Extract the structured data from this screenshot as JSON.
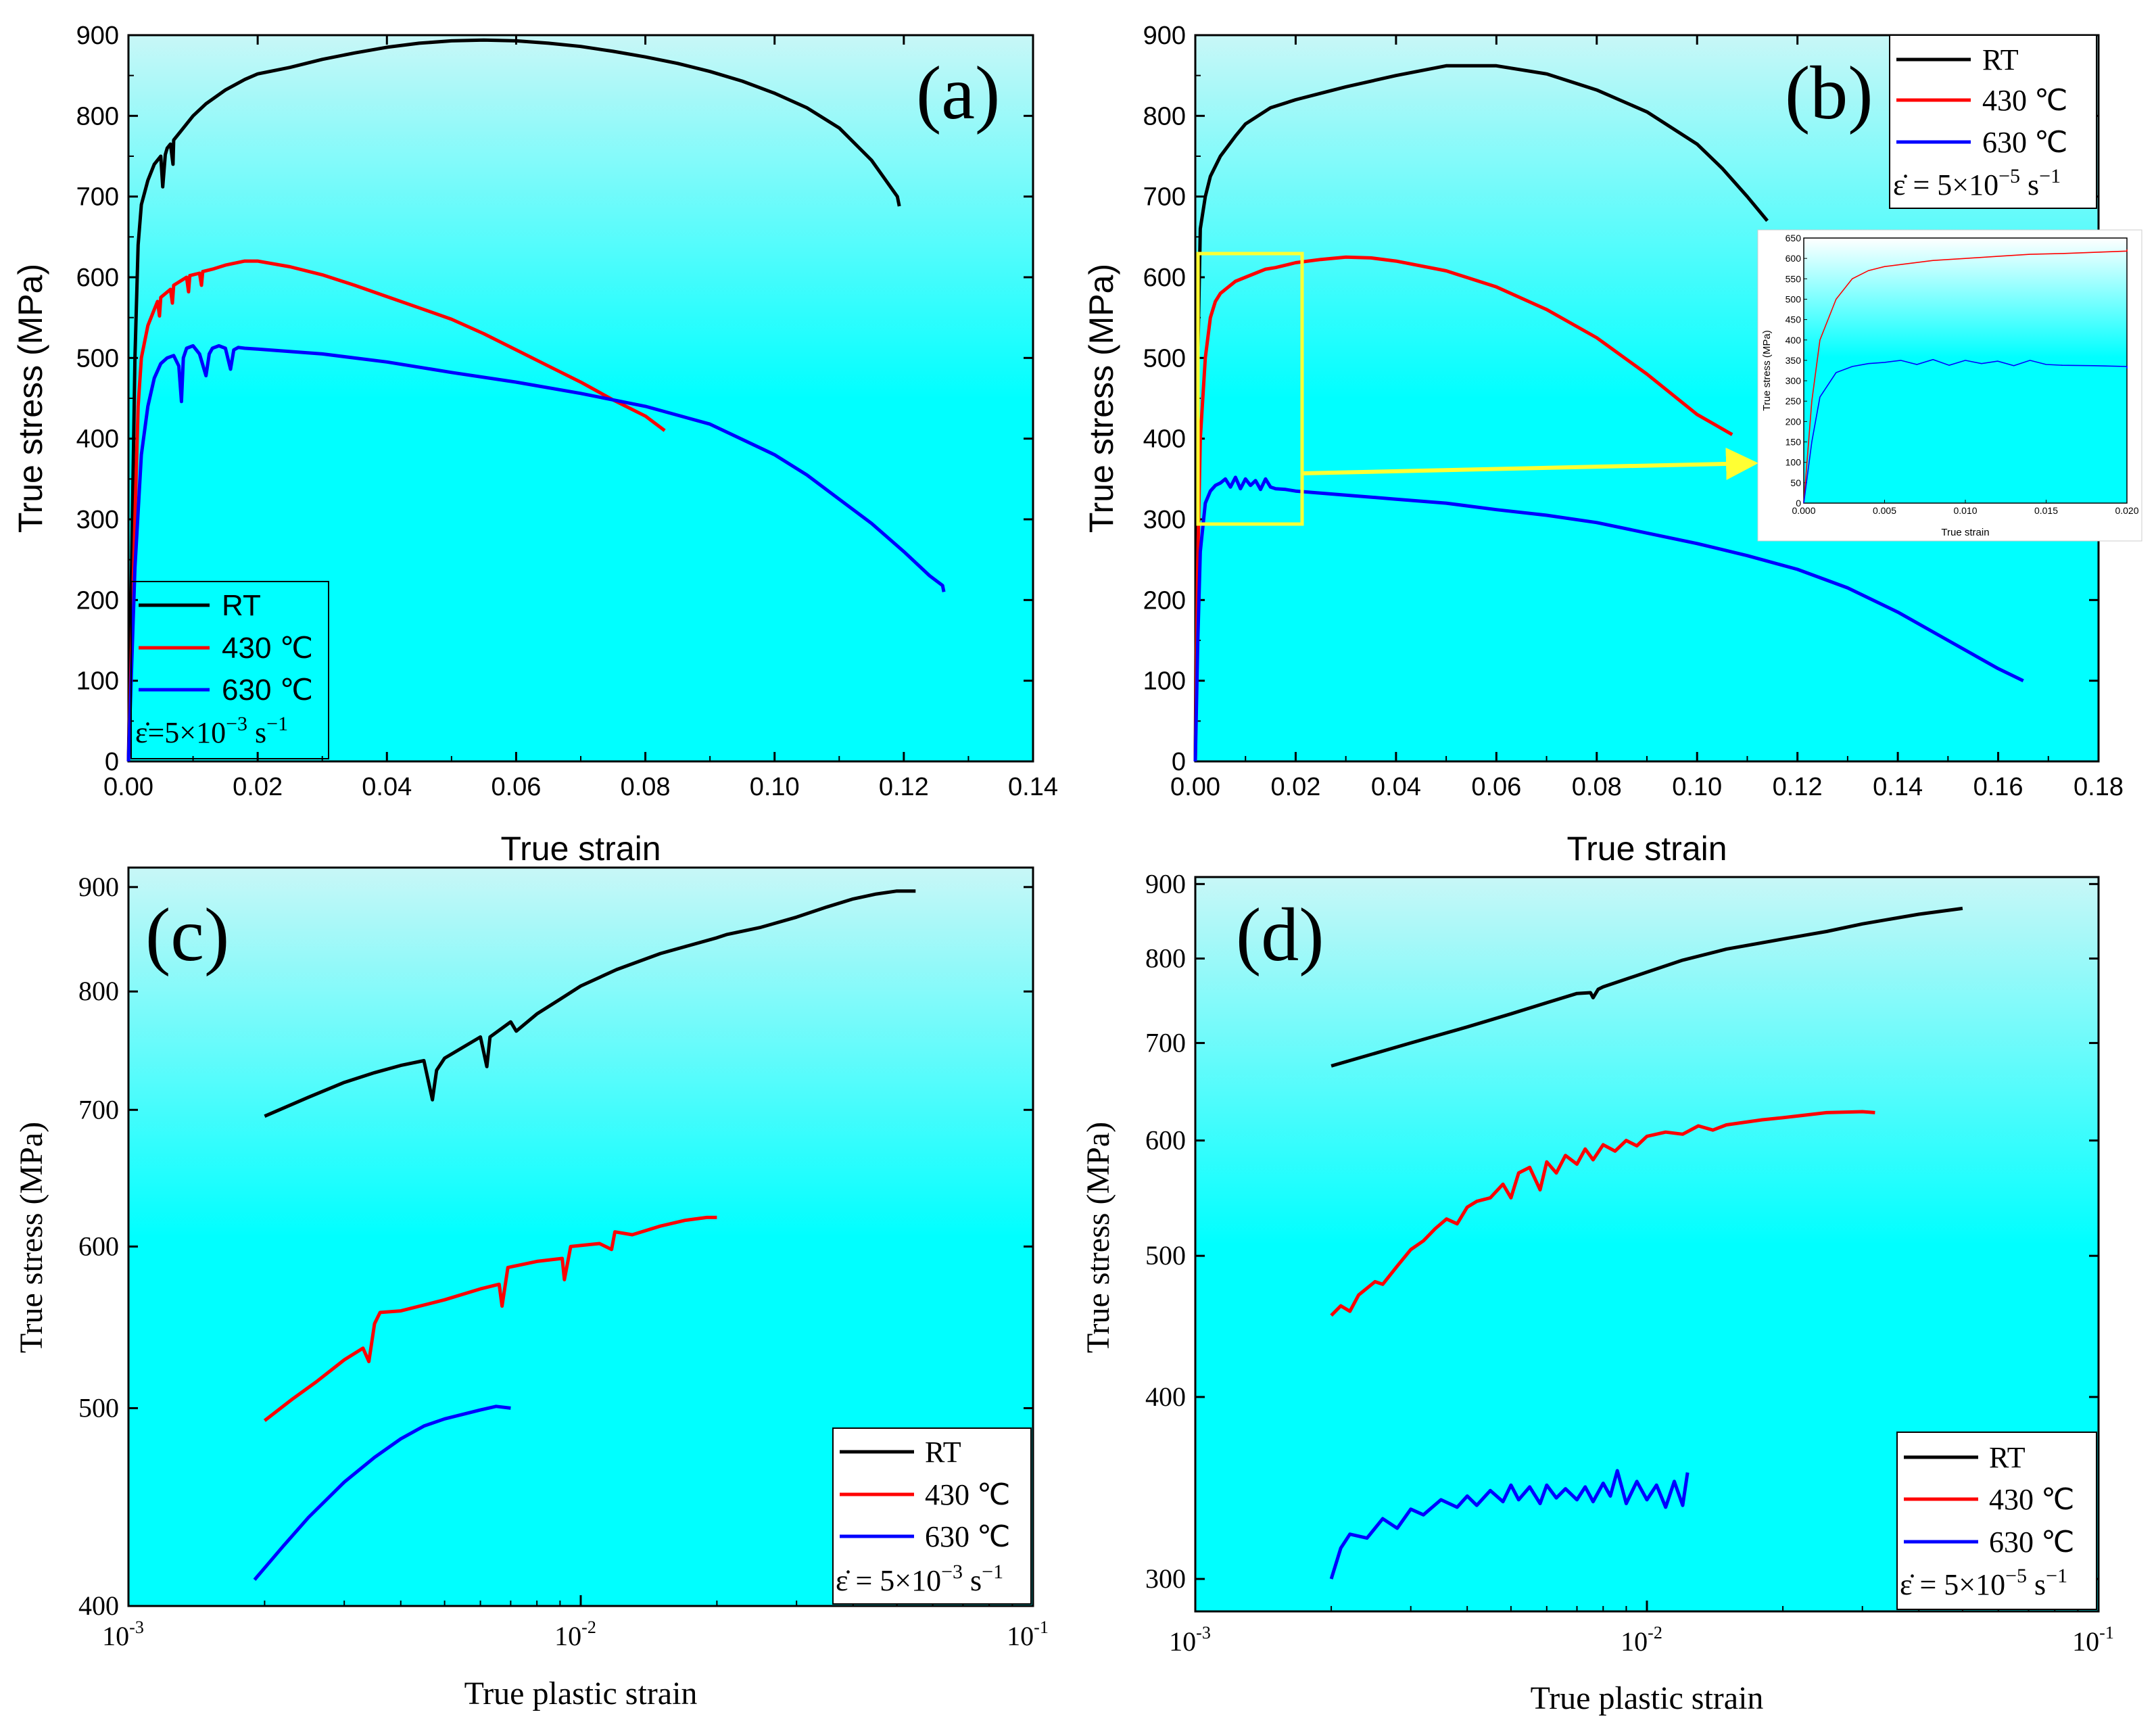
{
  "colors": {
    "RT": "#000000",
    "T430": "#ff0000",
    "T630": "#0000ff",
    "bg_top": "#d4f9f9",
    "bg_bottom": "#00ffff",
    "callout": "#ffff33"
  },
  "chart_data": [
    {
      "panel": "(a)",
      "type": "line",
      "xlabel": "True strain",
      "ylabel": "True stress (MPa)",
      "xlim": [
        0,
        0.14
      ],
      "ylim": [
        0,
        900
      ],
      "xticks": [
        "0.00",
        "0.02",
        "0.04",
        "0.06",
        "0.08",
        "0.10",
        "0.12",
        "0.14"
      ],
      "yticks": [
        "0",
        "100",
        "200",
        "300",
        "400",
        "500",
        "600",
        "700",
        "800",
        "900"
      ],
      "legend": {
        "placement": "bottom-left",
        "entries": [
          "RT",
          "430 ℃",
          "630 ℃"
        ],
        "rate_prefix": "ε̇=5×10",
        "rate_exp": "−3",
        "rate_suffix": " s",
        "rate_unit_exp": "−1"
      },
      "series": [
        {
          "name": "RT",
          "color_key": "RT",
          "x": [
            0,
            0.001,
            0.0015,
            0.002,
            0.003,
            0.004,
            0.005,
            0.0053,
            0.0057,
            0.006,
            0.0065,
            0.0069,
            0.007,
            0.008,
            0.01,
            0.012,
            0.015,
            0.018,
            0.02,
            0.025,
            0.03,
            0.035,
            0.04,
            0.045,
            0.05,
            0.055,
            0.06,
            0.065,
            0.07,
            0.075,
            0.08,
            0.085,
            0.09,
            0.095,
            0.1,
            0.105,
            0.11,
            0.115,
            0.119,
            0.1193
          ],
          "y": [
            0,
            500,
            640,
            690,
            720,
            740,
            750,
            712,
            752,
            760,
            765,
            740,
            770,
            780,
            800,
            815,
            832,
            845,
            852,
            860,
            870,
            878,
            885,
            890,
            893,
            894,
            893,
            890,
            886,
            880,
            873,
            865,
            855,
            843,
            828,
            810,
            785,
            745,
            700,
            688
          ]
        },
        {
          "name": "430 ℃",
          "color_key": "T430",
          "x": [
            0,
            0.001,
            0.0015,
            0.002,
            0.003,
            0.004,
            0.0045,
            0.0048,
            0.005,
            0.0065,
            0.0068,
            0.007,
            0.009,
            0.0093,
            0.0095,
            0.011,
            0.0113,
            0.0115,
            0.013,
            0.015,
            0.018,
            0.02,
            0.025,
            0.03,
            0.035,
            0.04,
            0.045,
            0.05,
            0.055,
            0.06,
            0.065,
            0.07,
            0.075,
            0.08,
            0.082,
            0.083
          ],
          "y": [
            0,
            300,
            440,
            500,
            540,
            560,
            570,
            552,
            575,
            585,
            568,
            590,
            600,
            582,
            602,
            605,
            590,
            607,
            610,
            615,
            620,
            620,
            613,
            603,
            590,
            576,
            562,
            548,
            530,
            510,
            490,
            470,
            448,
            428,
            416,
            410
          ]
        },
        {
          "name": "630 ℃",
          "color_key": "T630",
          "x": [
            0,
            0.001,
            0.002,
            0.003,
            0.004,
            0.005,
            0.006,
            0.007,
            0.0078,
            0.0082,
            0.0085,
            0.009,
            0.01,
            0.011,
            0.012,
            0.0125,
            0.013,
            0.014,
            0.015,
            0.0158,
            0.0163,
            0.017,
            0.018,
            0.02,
            0.03,
            0.04,
            0.05,
            0.06,
            0.07,
            0.08,
            0.09,
            0.1,
            0.105,
            0.11,
            0.115,
            0.12,
            0.124,
            0.126,
            0.1262
          ],
          "y": [
            0,
            240,
            380,
            440,
            475,
            493,
            500,
            503,
            490,
            446,
            500,
            512,
            515,
            505,
            478,
            505,
            512,
            515,
            512,
            486,
            510,
            513,
            512,
            511,
            505,
            495,
            482,
            470,
            456,
            440,
            418,
            380,
            355,
            325,
            295,
            260,
            230,
            218,
            210
          ]
        }
      ]
    },
    {
      "panel": "(b)",
      "type": "line",
      "xlabel": "True strain",
      "ylabel": "True stress (MPa)",
      "xlim": [
        0,
        0.18
      ],
      "ylim": [
        0,
        900
      ],
      "xticks": [
        "0.00",
        "0.02",
        "0.04",
        "0.06",
        "0.08",
        "0.10",
        "0.12",
        "0.14",
        "0.16",
        "0.18"
      ],
      "yticks": [
        "0",
        "100",
        "200",
        "300",
        "400",
        "500",
        "600",
        "700",
        "800",
        "900"
      ],
      "legend": {
        "placement": "top-right",
        "entries": [
          "RT",
          "430 ℃",
          "630 ℃"
        ],
        "rate_prefix": "ε̇ = 5×10",
        "rate_exp": "−5",
        "rate_suffix": " s",
        "rate_unit_exp": "−1"
      },
      "series": [
        {
          "name": "RT",
          "color_key": "RT",
          "x": [
            0,
            0.0005,
            0.001,
            0.002,
            0.003,
            0.005,
            0.008,
            0.01,
            0.015,
            0.02,
            0.025,
            0.03,
            0.04,
            0.05,
            0.06,
            0.07,
            0.08,
            0.09,
            0.1,
            0.105,
            0.11,
            0.114
          ],
          "y": [
            0,
            500,
            660,
            700,
            725,
            750,
            775,
            790,
            810,
            820,
            828,
            836,
            850,
            862,
            862,
            852,
            832,
            805,
            765,
            735,
            700,
            670
          ]
        },
        {
          "name": "430 ℃",
          "color_key": "T430",
          "x": [
            0,
            0.0005,
            0.001,
            0.002,
            0.003,
            0.004,
            0.005,
            0.006,
            0.008,
            0.01,
            0.012,
            0.014,
            0.016,
            0.02,
            0.025,
            0.03,
            0.035,
            0.04,
            0.05,
            0.06,
            0.07,
            0.08,
            0.09,
            0.1,
            0.107
          ],
          "y": [
            0,
            250,
            400,
            500,
            550,
            570,
            580,
            585,
            595,
            600,
            605,
            610,
            612,
            618,
            622,
            625,
            624,
            620,
            608,
            588,
            560,
            525,
            480,
            430,
            405
          ]
        },
        {
          "name": "630 ℃",
          "color_key": "T630",
          "x": [
            0,
            0.0005,
            0.001,
            0.002,
            0.003,
            0.004,
            0.005,
            0.006,
            0.007,
            0.008,
            0.009,
            0.01,
            0.011,
            0.012,
            0.013,
            0.014,
            0.015,
            0.016,
            0.018,
            0.02,
            0.03,
            0.04,
            0.05,
            0.06,
            0.07,
            0.08,
            0.09,
            0.1,
            0.11,
            0.12,
            0.13,
            0.14,
            0.15,
            0.16,
            0.165
          ],
          "y": [
            0,
            150,
            260,
            320,
            335,
            342,
            345,
            350,
            340,
            352,
            338,
            350,
            342,
            348,
            337,
            350,
            340,
            338,
            337,
            335,
            330,
            325,
            320,
            312,
            305,
            296,
            283,
            270,
            255,
            238,
            215,
            185,
            150,
            115,
            100
          ]
        }
      ],
      "inset": {
        "xlabel": "True strain",
        "ylabel": "True stress (MPa)",
        "xlim": [
          0,
          0.02
        ],
        "ylim": [
          0,
          650
        ],
        "xticks": [
          "0.000",
          "0.005",
          "0.010",
          "0.015",
          "0.020"
        ],
        "yticks": [
          "0",
          "50",
          "100",
          "150",
          "200",
          "250",
          "300",
          "350",
          "400",
          "450",
          "500",
          "550",
          "600",
          "650"
        ]
      }
    },
    {
      "panel": "(c)",
      "type": "line",
      "xlabel": "True plastic strain",
      "ylabel": "True stress (MPa)",
      "xscale": "log",
      "yscale": "log",
      "xlim": [
        0.001,
        0.1
      ],
      "ylim": [
        400,
        920
      ],
      "yticks": [
        "400",
        "500",
        "600",
        "700",
        "800",
        "900"
      ],
      "xtick_base": "10",
      "xtick_exps": [
        "-3",
        "-2",
        "-1"
      ],
      "legend": {
        "placement": "bottom-right",
        "entries": [
          "RT",
          "430 ℃",
          "630 ℃"
        ],
        "rate_prefix": "ε̇ = 5×10",
        "rate_exp": "−3",
        "rate_suffix": " s",
        "rate_unit_exp": "−1"
      },
      "series": [
        {
          "name": "RT",
          "color_key": "RT",
          "x": [
            0.002,
            0.0025,
            0.003,
            0.0035,
            0.004,
            0.0045,
            0.0047,
            0.0048,
            0.005,
            0.006,
            0.0062,
            0.0063,
            0.007,
            0.0072,
            0.008,
            0.009,
            0.01,
            0.012,
            0.015,
            0.02,
            0.021,
            0.025,
            0.03,
            0.035,
            0.04,
            0.045,
            0.05,
            0.055
          ],
          "y": [
            695,
            710,
            722,
            730,
            736,
            740,
            708,
            732,
            742,
            760,
            735,
            760,
            773,
            765,
            780,
            793,
            805,
            820,
            835,
            850,
            853,
            860,
            870,
            880,
            888,
            893,
            896,
            896
          ]
        },
        {
          "name": "430 ℃",
          "color_key": "T430",
          "x": [
            0.002,
            0.0023,
            0.0026,
            0.003,
            0.0033,
            0.0034,
            0.0035,
            0.0036,
            0.004,
            0.005,
            0.006,
            0.0066,
            0.0067,
            0.0069,
            0.008,
            0.0091,
            0.0092,
            0.0095,
            0.011,
            0.0117,
            0.0119,
            0.013,
            0.015,
            0.017,
            0.019,
            0.02
          ],
          "y": [
            493,
            505,
            515,
            528,
            535,
            527,
            550,
            557,
            558,
            565,
            572,
            575,
            561,
            586,
            590,
            592,
            578,
            600,
            602,
            598,
            610,
            608,
            614,
            618,
            620,
            620
          ]
        },
        {
          "name": "630 ℃",
          "color_key": "T630",
          "x": [
            0.0019,
            0.0022,
            0.0025,
            0.003,
            0.0035,
            0.004,
            0.0045,
            0.005,
            0.006,
            0.0065,
            0.007
          ],
          "y": [
            412,
            428,
            442,
            460,
            473,
            483,
            490,
            494,
            499,
            501,
            500
          ]
        }
      ]
    },
    {
      "panel": "(d)",
      "type": "line",
      "xlabel": "True plastic strain",
      "ylabel": "True stress (MPa)",
      "xscale": "log",
      "yscale": "log",
      "xlim": [
        0.001,
        0.1
      ],
      "ylim": [
        285,
        910
      ],
      "yticks": [
        "300",
        "400",
        "500",
        "600",
        "700",
        "800",
        "900"
      ],
      "xtick_base": "10",
      "xtick_exps": [
        "-3",
        "-2",
        "-1"
      ],
      "legend": {
        "placement": "bottom-right",
        "entries": [
          "RT",
          "430 ℃",
          "630 ℃"
        ],
        "rate_prefix": "ε̇ = 5×10",
        "rate_exp": "−5",
        "rate_suffix": " s",
        "rate_unit_exp": "−1"
      },
      "series": [
        {
          "name": "RT",
          "color_key": "RT",
          "x": [
            0.002,
            0.003,
            0.004,
            0.005,
            0.006,
            0.007,
            0.0075,
            0.0076,
            0.0078,
            0.008,
            0.01,
            0.012,
            0.015,
            0.02,
            0.025,
            0.03,
            0.04,
            0.05
          ],
          "y": [
            675,
            700,
            718,
            733,
            746,
            757,
            758,
            752,
            762,
            765,
            783,
            798,
            812,
            825,
            835,
            845,
            858,
            866
          ]
        },
        {
          "name": "430 ℃",
          "color_key": "T430",
          "x": [
            0.002,
            0.0021,
            0.0022,
            0.0023,
            0.0025,
            0.0026,
            0.0028,
            0.003,
            0.0032,
            0.0034,
            0.0036,
            0.0038,
            0.004,
            0.0042,
            0.0045,
            0.0048,
            0.005,
            0.0052,
            0.0055,
            0.0058,
            0.006,
            0.0063,
            0.0066,
            0.007,
            0.0073,
            0.0076,
            0.008,
            0.0085,
            0.009,
            0.0095,
            0.01,
            0.011,
            0.012,
            0.013,
            0.014,
            0.015,
            0.018,
            0.02,
            0.025,
            0.03,
            0.032
          ],
          "y": [
            455,
            462,
            458,
            470,
            480,
            478,
            492,
            505,
            512,
            522,
            530,
            526,
            540,
            545,
            548,
            560,
            548,
            570,
            575,
            555,
            580,
            570,
            586,
            578,
            592,
            582,
            596,
            590,
            600,
            595,
            604,
            608,
            606,
            614,
            610,
            615,
            620,
            622,
            627,
            628,
            627
          ]
        },
        {
          "name": "630 ℃",
          "color_key": "T630",
          "x": [
            0.002,
            0.0021,
            0.0022,
            0.0024,
            0.0026,
            0.0028,
            0.003,
            0.0032,
            0.0035,
            0.0038,
            0.004,
            0.0042,
            0.0045,
            0.0048,
            0.005,
            0.0052,
            0.0055,
            0.0058,
            0.006,
            0.0063,
            0.0066,
            0.007,
            0.0073,
            0.0076,
            0.008,
            0.0083,
            0.0086,
            0.009,
            0.0095,
            0.01,
            0.0105,
            0.011,
            0.0115,
            0.012,
            0.0123
          ],
          "y": [
            300,
            315,
            322,
            320,
            330,
            325,
            335,
            332,
            340,
            336,
            342,
            337,
            345,
            339,
            348,
            340,
            347,
            338,
            348,
            341,
            346,
            340,
            347,
            339,
            349,
            342,
            356,
            338,
            350,
            340,
            348,
            336,
            350,
            337,
            355
          ]
        }
      ]
    }
  ]
}
